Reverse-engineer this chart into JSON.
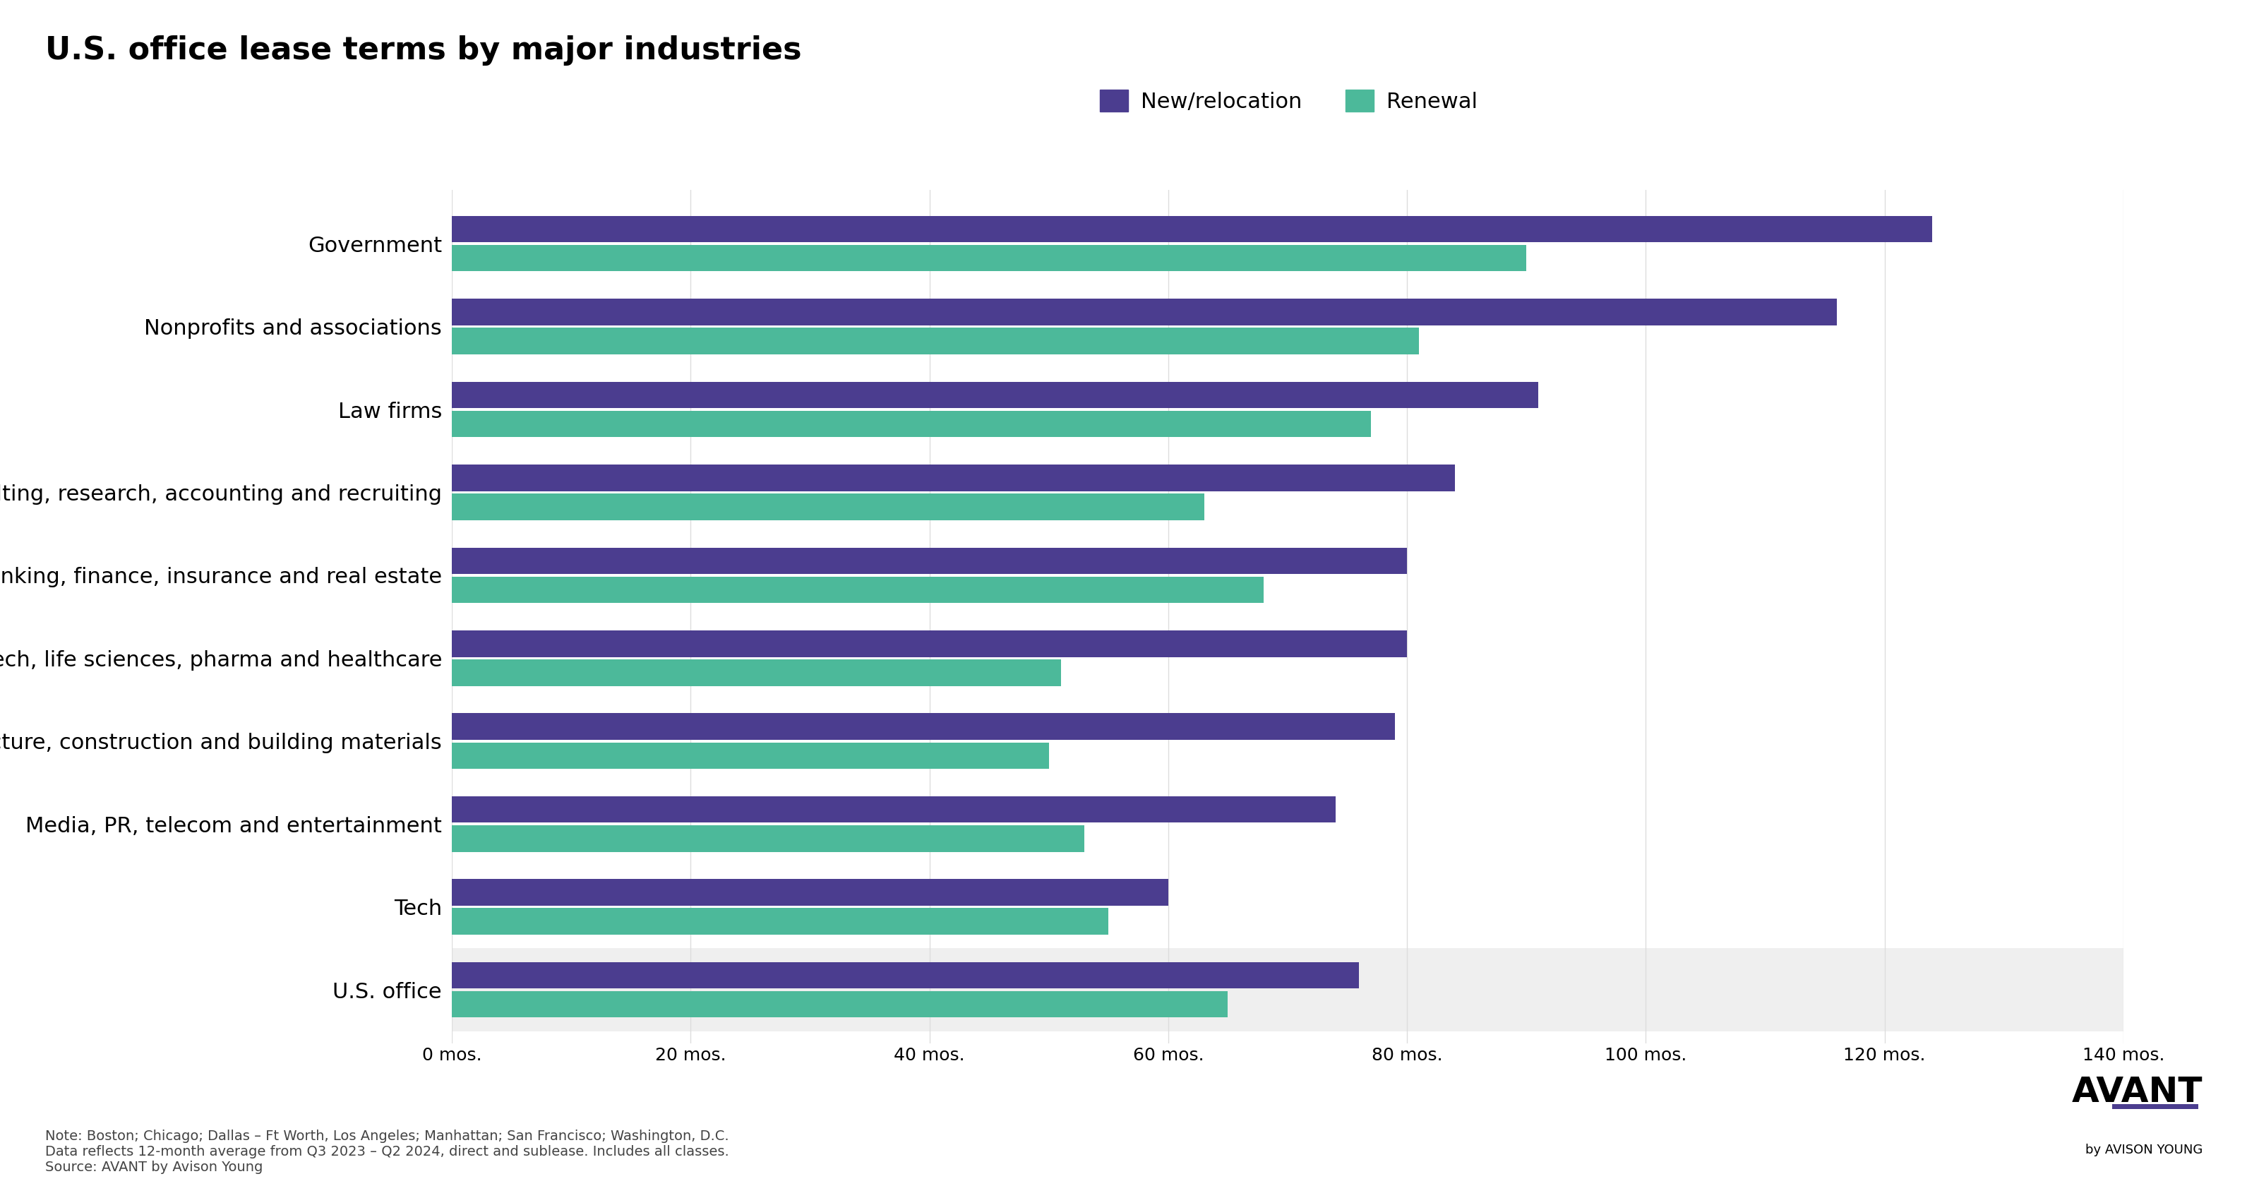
{
  "title": "U.S. office lease terms by major industries",
  "title_fontsize": 32,
  "categories": [
    "U.S. office",
    "Tech",
    "Media, PR, telecom and entertainment",
    "Engineering, architecture, construction and building materials",
    "Biotech, life sciences, pharma and healthcare",
    "Banking, finance, insurance and real estate",
    "Consulting, research, accounting and recruiting",
    "Law firms",
    "Nonprofits and associations",
    "Government"
  ],
  "new_relocation": [
    76,
    60,
    74,
    79,
    80,
    80,
    84,
    91,
    116,
    124
  ],
  "renewal": [
    65,
    55,
    53,
    50,
    51,
    68,
    63,
    77,
    81,
    90
  ],
  "new_relocation_color": "#4b3d8f",
  "renewal_color": "#4cb99a",
  "legend_new_relocation": "New/relocation",
  "legend_renewal": "Renewal",
  "xlim": [
    0,
    140
  ],
  "xticks": [
    0,
    20,
    40,
    60,
    80,
    100,
    120,
    140
  ],
  "xtick_labels": [
    "0 mos.",
    "20 mos.",
    "40 mos.",
    "60 mos.",
    "80 mos.",
    "100 mos.",
    "120 mos.",
    "140 mos."
  ],
  "tick_fontsize": 18,
  "ylabel_fontsize": 22,
  "legend_fontsize": 22,
  "note_text": "Note: Boston; Chicago; Dallas – Ft Worth, Los Angeles; Manhattan; San Francisco; Washington, D.C.\nData reflects 12-month average from Q3 2023 – Q2 2024, direct and sublease. Includes all classes.\nSource: AVANT by Avison Young",
  "note_fontsize": 14,
  "background_color": "#ffffff",
  "last_row_bg": "#efefef",
  "bar_height": 0.32,
  "bar_gap": 0.03,
  "grid_color": "#dddddd"
}
